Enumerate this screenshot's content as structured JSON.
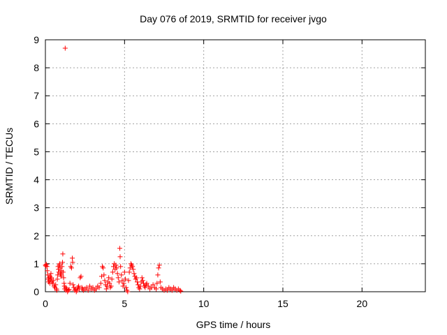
{
  "chart_data": {
    "type": "scatter",
    "title": "Day 076 of 2019, SRMTID for receiver jvgo",
    "xlabel": "GPS time / hours",
    "ylabel": "SRMTID / TECUs",
    "xlim": [
      0,
      24
    ],
    "ylim": [
      0,
      9
    ],
    "xticks": [
      0,
      5,
      10,
      15,
      20
    ],
    "yticks": [
      0,
      1,
      2,
      3,
      4,
      5,
      6,
      7,
      8,
      9
    ],
    "grid": true,
    "marker": "plus",
    "color": "#ff0000",
    "series": [
      {
        "points": [
          [
            0.0,
            0.95
          ],
          [
            0.03,
            0.92
          ],
          [
            0.06,
            0.98
          ],
          [
            0.1,
            0.9
          ],
          [
            0.12,
            0.75
          ],
          [
            0.15,
            0.6
          ],
          [
            0.18,
            0.45
          ],
          [
            0.2,
            0.35
          ],
          [
            0.22,
            0.5
          ],
          [
            0.25,
            0.4
          ],
          [
            0.28,
            0.3
          ],
          [
            0.3,
            0.55
          ],
          [
            0.33,
            0.45
          ],
          [
            0.35,
            0.65
          ],
          [
            0.38,
            0.5
          ],
          [
            0.4,
            0.35
          ],
          [
            0.45,
            0.3
          ],
          [
            0.5,
            0.4
          ],
          [
            0.55,
            0.2
          ],
          [
            0.6,
            0.15
          ],
          [
            0.65,
            0.25
          ],
          [
            0.7,
            0.1
          ],
          [
            0.72,
            0.05
          ],
          [
            0.75,
            0.45
          ],
          [
            0.78,
            0.6
          ],
          [
            0.8,
            0.9
          ],
          [
            0.82,
            0.8
          ],
          [
            0.85,
            0.7
          ],
          [
            0.88,
            0.95
          ],
          [
            0.9,
            1.0
          ],
          [
            0.93,
            0.85
          ],
          [
            0.95,
            0.65
          ],
          [
            0.98,
            0.55
          ],
          [
            1.0,
            0.6
          ],
          [
            1.02,
            0.75
          ],
          [
            1.05,
            0.9
          ],
          [
            1.08,
            1.05
          ],
          [
            1.1,
            1.35
          ],
          [
            1.12,
            0.7
          ],
          [
            1.15,
            0.5
          ],
          [
            1.18,
            0.3
          ],
          [
            1.2,
            0.2
          ],
          [
            1.22,
            0.1
          ],
          [
            1.25,
            8.7
          ],
          [
            1.28,
            0.15
          ],
          [
            1.3,
            0.05
          ],
          [
            1.35,
            0.1
          ],
          [
            1.4,
            0.0
          ],
          [
            1.45,
            0.05
          ],
          [
            1.5,
            0.08
          ],
          [
            1.55,
            0.3
          ],
          [
            1.6,
            0.9
          ],
          [
            1.65,
            0.85
          ],
          [
            1.7,
            1.2
          ],
          [
            1.72,
            1.05
          ],
          [
            1.75,
            0.25
          ],
          [
            1.8,
            0.15
          ],
          [
            1.85,
            0.05
          ],
          [
            1.9,
            0.1
          ],
          [
            1.95,
            0.0
          ],
          [
            2.0,
            0.05
          ],
          [
            2.05,
            0.15
          ],
          [
            2.1,
            0.2
          ],
          [
            2.15,
            0.1
          ],
          [
            2.2,
            0.5
          ],
          [
            2.25,
            0.55
          ],
          [
            2.3,
            0.15
          ],
          [
            2.35,
            0.1
          ],
          [
            2.4,
            0.05
          ],
          [
            2.5,
            0.1
          ],
          [
            2.6,
            0.15
          ],
          [
            2.7,
            0.05
          ],
          [
            2.8,
            0.2
          ],
          [
            2.9,
            0.1
          ],
          [
            3.0,
            0.15
          ],
          [
            3.1,
            0.05
          ],
          [
            3.2,
            0.1
          ],
          [
            3.3,
            0.2
          ],
          [
            3.4,
            0.15
          ],
          [
            3.5,
            0.3
          ],
          [
            3.55,
            0.55
          ],
          [
            3.6,
            0.9
          ],
          [
            3.65,
            0.85
          ],
          [
            3.7,
            0.6
          ],
          [
            3.75,
            0.4
          ],
          [
            3.8,
            0.25
          ],
          [
            3.85,
            0.1
          ],
          [
            3.9,
            0.2
          ],
          [
            3.95,
            0.35
          ],
          [
            4.0,
            0.5
          ],
          [
            4.05,
            0.3
          ],
          [
            4.1,
            0.15
          ],
          [
            4.15,
            0.2
          ],
          [
            4.2,
            0.45
          ],
          [
            4.25,
            0.7
          ],
          [
            4.3,
            0.9
          ],
          [
            4.35,
            1.0
          ],
          [
            4.4,
            0.8
          ],
          [
            4.45,
            0.95
          ],
          [
            4.5,
            0.85
          ],
          [
            4.55,
            0.65
          ],
          [
            4.6,
            0.5
          ],
          [
            4.65,
            0.35
          ],
          [
            4.7,
            1.55
          ],
          [
            4.72,
            1.25
          ],
          [
            4.75,
            0.9
          ],
          [
            4.8,
            0.6
          ],
          [
            4.85,
            0.4
          ],
          [
            4.9,
            0.2
          ],
          [
            4.95,
            0.3
          ],
          [
            5.0,
            0.7
          ],
          [
            5.05,
            0.45
          ],
          [
            5.1,
            0.15
          ],
          [
            5.15,
            0.05
          ],
          [
            5.2,
            0.0
          ],
          [
            5.25,
            0.4
          ],
          [
            5.3,
            0.7
          ],
          [
            5.35,
            0.85
          ],
          [
            5.4,
            1.0
          ],
          [
            5.45,
            0.95
          ],
          [
            5.5,
            0.9
          ],
          [
            5.55,
            0.8
          ],
          [
            5.6,
            0.65
          ],
          [
            5.65,
            0.55
          ],
          [
            5.7,
            0.45
          ],
          [
            5.75,
            0.5
          ],
          [
            5.8,
            0.35
          ],
          [
            5.85,
            0.25
          ],
          [
            5.9,
            0.15
          ],
          [
            5.95,
            0.1
          ],
          [
            6.0,
            0.2
          ],
          [
            6.05,
            0.35
          ],
          [
            6.1,
            0.5
          ],
          [
            6.15,
            0.4
          ],
          [
            6.2,
            0.3
          ],
          [
            6.25,
            0.2
          ],
          [
            6.3,
            0.15
          ],
          [
            6.35,
            0.25
          ],
          [
            6.4,
            0.3
          ],
          [
            6.5,
            0.2
          ],
          [
            6.6,
            0.1
          ],
          [
            6.7,
            0.15
          ],
          [
            6.8,
            0.25
          ],
          [
            6.9,
            0.15
          ],
          [
            7.0,
            0.1
          ],
          [
            7.05,
            0.3
          ],
          [
            7.1,
            0.6
          ],
          [
            7.15,
            0.85
          ],
          [
            7.2,
            0.95
          ],
          [
            7.25,
            0.35
          ],
          [
            7.3,
            0.15
          ],
          [
            7.4,
            0.1
          ],
          [
            7.5,
            0.05
          ],
          [
            7.6,
            0.1
          ],
          [
            7.7,
            0.05
          ],
          [
            7.8,
            0.15
          ],
          [
            7.9,
            0.1
          ],
          [
            8.0,
            0.05
          ],
          [
            8.1,
            0.15
          ],
          [
            8.2,
            0.1
          ],
          [
            8.3,
            0.05
          ],
          [
            8.4,
            0.1
          ],
          [
            8.5,
            0.05
          ],
          [
            8.55,
            0.02
          ]
        ]
      }
    ]
  }
}
